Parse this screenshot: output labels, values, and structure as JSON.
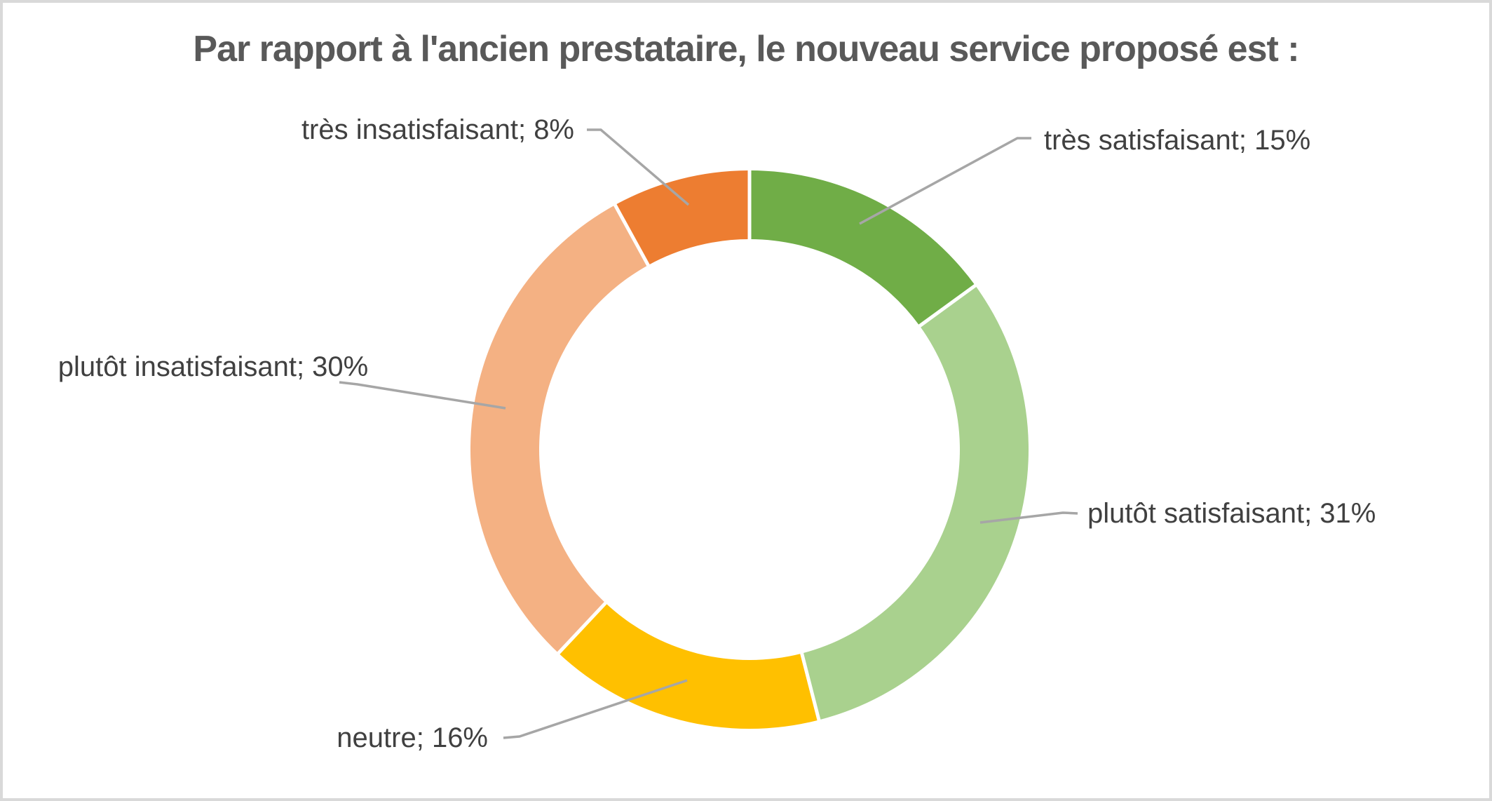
{
  "chart_data": {
    "type": "pie",
    "subtype": "donut",
    "title": "Par rapport à l'ancien prestataire, le nouveau service proposé est :",
    "start_angle_deg": 0,
    "direction": "clockwise",
    "donut_hole_ratio": 0.754,
    "legend": "none",
    "slices": [
      {
        "key": "tres-satisfaisant",
        "category": "très satisfaisant",
        "value": 15,
        "color": "#70AD47",
        "label_text": "très satisfaisant; 15%"
      },
      {
        "key": "plutot-satisfaisant",
        "category": "plutôt satisfaisant",
        "value": 31,
        "color": "#A9D18E",
        "label_text": "plutôt satisfaisant; 31%"
      },
      {
        "key": "neutre",
        "category": "neutre",
        "value": 16,
        "color": "#FFC000",
        "label_text": "neutre; 16%"
      },
      {
        "key": "plutot-insatisfaisant",
        "category": "plutôt insatisfaisant",
        "value": 30,
        "color": "#F4B183",
        "label_text": "plutôt insatisfaisant; 30%"
      },
      {
        "key": "tres-insatisfaisant",
        "category": "très insatisfaisant",
        "value": 8,
        "color": "#ED7D31",
        "label_text": "très insatisfaisant; 8%"
      }
    ],
    "styles": {
      "title_color": "#595959",
      "label_color": "#404040",
      "leader_line_color": "#A6A6A6",
      "separator_color": "#FFFFFF",
      "frame_border_color": "#D9D9D9",
      "background": "#FFFFFF"
    }
  }
}
